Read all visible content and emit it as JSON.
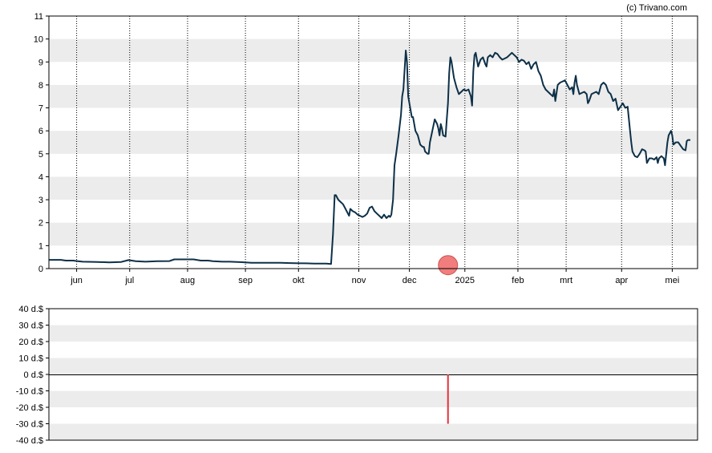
{
  "credit": "(c) Trivano.com",
  "colors": {
    "band": "#ececec",
    "line": "#0d3048",
    "marker": "#f07070",
    "marker_stroke": "#c84040",
    "bar": "#e8303a",
    "grid": "#000000"
  },
  "chart_data": [
    {
      "type": "line",
      "title": "",
      "xlabel": "",
      "ylabel": "",
      "ylim": [
        0,
        11
      ],
      "y_ticks": [
        "0",
        "1",
        "2",
        "3",
        "4",
        "5",
        "6",
        "7",
        "8",
        "9",
        "10",
        "11"
      ],
      "x_ticks": [
        "jun",
        "jul",
        "aug",
        "sep",
        "okt",
        "nov",
        "dec",
        "2025",
        "feb",
        "mrt",
        "apr",
        "mei"
      ],
      "x_tick_positions": [
        11.5,
        33.5,
        57.5,
        81.5,
        103.5,
        128.5,
        149.5,
        172.5,
        194.5,
        214.5,
        237.5,
        258.5
      ],
      "x_range": [
        0,
        269
      ],
      "grid": "vertical dotted at month ticks, horizontal alternating bands",
      "marker": {
        "x": 165.5,
        "y": 0.15
      },
      "series": [
        {
          "points": [
            [
              0,
              0.38
            ],
            [
              5,
              0.38
            ],
            [
              7,
              0.35
            ],
            [
              10,
              0.35
            ],
            [
              12,
              0.32
            ],
            [
              14,
              0.3
            ],
            [
              20,
              0.29
            ],
            [
              25,
              0.27
            ],
            [
              30,
              0.29
            ],
            [
              33,
              0.37
            ],
            [
              36,
              0.32
            ],
            [
              40,
              0.3
            ],
            [
              45,
              0.32
            ],
            [
              50,
              0.33
            ],
            [
              52,
              0.4
            ],
            [
              57,
              0.4
            ],
            [
              60,
              0.4
            ],
            [
              63,
              0.35
            ],
            [
              66,
              0.35
            ],
            [
              68,
              0.32
            ],
            [
              72,
              0.3
            ],
            [
              75,
              0.3
            ],
            [
              80,
              0.28
            ],
            [
              84,
              0.25
            ],
            [
              88,
              0.25
            ],
            [
              92,
              0.25
            ],
            [
              96,
              0.25
            ],
            [
              100,
              0.24
            ],
            [
              104,
              0.23
            ],
            [
              106,
              0.23
            ],
            [
              110,
              0.22
            ],
            [
              115,
              0.22
            ],
            [
              117,
              0.2
            ],
            [
              117.8,
              1.5
            ],
            [
              118.5,
              3.2
            ],
            [
              119,
              3.2
            ],
            [
              120,
              3.0
            ],
            [
              121,
              2.9
            ],
            [
              122,
              2.8
            ],
            [
              123,
              2.6
            ],
            [
              124,
              2.4
            ],
            [
              124.5,
              2.3
            ],
            [
              125,
              2.6
            ],
            [
              126,
              2.5
            ],
            [
              127,
              2.45
            ],
            [
              128,
              2.35
            ],
            [
              129,
              2.3
            ],
            [
              130,
              2.25
            ],
            [
              131,
              2.3
            ],
            [
              132,
              2.4
            ],
            [
              133,
              2.65
            ],
            [
              134,
              2.7
            ],
            [
              135,
              2.5
            ],
            [
              136,
              2.4
            ],
            [
              137,
              2.3
            ],
            [
              138,
              2.2
            ],
            [
              139,
              2.35
            ],
            [
              140,
              2.2
            ],
            [
              141,
              2.3
            ],
            [
              141.5,
              2.25
            ],
            [
              142,
              2.35
            ],
            [
              142.7,
              3.0
            ],
            [
              143.3,
              4.5
            ],
            [
              144,
              5.0
            ],
            [
              145,
              5.8
            ],
            [
              146,
              6.7
            ],
            [
              146.5,
              7.5
            ],
            [
              147,
              7.8
            ],
            [
              148,
              9.5
            ],
            [
              148.5,
              9.0
            ],
            [
              149,
              7.5
            ],
            [
              149.5,
              7.2
            ],
            [
              150,
              6.9
            ],
            [
              150.5,
              6.6
            ],
            [
              151,
              6.6
            ],
            [
              152,
              6.0
            ],
            [
              153,
              5.8
            ],
            [
              153.5,
              5.6
            ],
            [
              154,
              5.4
            ],
            [
              155,
              5.3
            ],
            [
              155.5,
              5.3
            ],
            [
              156,
              5.1
            ],
            [
              157,
              5.0
            ],
            [
              157.5,
              5.0
            ],
            [
              158,
              5.5
            ],
            [
              159,
              6.0
            ],
            [
              160,
              6.5
            ],
            [
              161,
              6.3
            ],
            [
              161.5,
              6.1
            ],
            [
              162,
              5.8
            ],
            [
              162.5,
              6.3
            ],
            [
              163,
              6.1
            ],
            [
              163.5,
              5.8
            ],
            [
              164.5,
              5.75
            ],
            [
              165,
              6.5
            ],
            [
              165.5,
              7.2
            ],
            [
              166,
              8.5
            ],
            [
              166.5,
              9.2
            ],
            [
              167,
              9.0
            ],
            [
              168,
              8.3
            ],
            [
              169,
              7.9
            ],
            [
              170,
              7.6
            ],
            [
              171,
              7.7
            ],
            [
              172,
              7.8
            ],
            [
              173,
              7.75
            ],
            [
              174,
              7.8
            ],
            [
              175,
              7.5
            ],
            [
              175.5,
              7.1
            ],
            [
              176,
              8.6
            ],
            [
              176.5,
              9.3
            ],
            [
              177,
              9.4
            ],
            [
              178,
              8.8
            ],
            [
              179,
              9.1
            ],
            [
              180,
              9.2
            ],
            [
              181,
              8.9
            ],
            [
              181.5,
              8.8
            ],
            [
              182,
              9.2
            ],
            [
              183,
              9.3
            ],
            [
              184,
              9.2
            ],
            [
              185,
              9.4
            ],
            [
              186,
              9.35
            ],
            [
              187,
              9.2
            ],
            [
              188,
              9.1
            ],
            [
              189,
              9.15
            ],
            [
              190,
              9.2
            ],
            [
              191,
              9.3
            ],
            [
              192,
              9.4
            ],
            [
              193,
              9.3
            ],
            [
              194,
              9.2
            ],
            [
              195,
              9.0
            ],
            [
              196,
              9.1
            ],
            [
              197,
              9.05
            ],
            [
              198,
              8.9
            ],
            [
              199,
              9.0
            ],
            [
              200,
              8.7
            ],
            [
              201,
              8.9
            ],
            [
              202,
              9.0
            ],
            [
              203,
              8.6
            ],
            [
              204,
              8.4
            ],
            [
              205,
              8.0
            ],
            [
              206,
              7.8
            ],
            [
              207,
              7.7
            ],
            [
              208,
              7.6
            ],
            [
              209,
              7.5
            ],
            [
              209.5,
              7.8
            ],
            [
              210,
              7.3
            ],
            [
              211,
              8.0
            ],
            [
              212,
              8.1
            ],
            [
              213,
              8.15
            ],
            [
              214,
              8.2
            ],
            [
              215,
              8.0
            ],
            [
              216,
              7.8
            ],
            [
              217,
              7.9
            ],
            [
              217.5,
              7.6
            ],
            [
              218,
              8.1
            ],
            [
              218.5,
              8.4
            ],
            [
              219,
              8.0
            ],
            [
              220,
              7.6
            ],
            [
              221,
              7.65
            ],
            [
              222,
              7.7
            ],
            [
              223,
              7.6
            ],
            [
              223.5,
              7.2
            ],
            [
              224,
              7.3
            ],
            [
              225,
              7.6
            ],
            [
              226,
              7.65
            ],
            [
              227,
              7.7
            ],
            [
              228,
              7.6
            ],
            [
              229,
              8.0
            ],
            [
              230,
              8.1
            ],
            [
              231,
              8.0
            ],
            [
              232,
              7.7
            ],
            [
              233,
              7.6
            ],
            [
              234,
              7.3
            ],
            [
              235,
              7.4
            ],
            [
              236,
              6.9
            ],
            [
              237,
              7.05
            ],
            [
              238,
              7.2
            ],
            [
              239,
              7.0
            ],
            [
              240,
              7.05
            ],
            [
              241,
              6.0
            ],
            [
              241.5,
              5.5
            ],
            [
              242,
              5.1
            ],
            [
              243,
              4.9
            ],
            [
              244,
              4.85
            ],
            [
              245,
              5.0
            ],
            [
              246,
              5.2
            ],
            [
              247,
              5.15
            ],
            [
              247.5,
              5.1
            ],
            [
              248,
              4.6
            ],
            [
              249,
              4.8
            ],
            [
              250,
              4.8
            ],
            [
              251,
              4.75
            ],
            [
              252,
              4.85
            ],
            [
              252.5,
              4.6
            ],
            [
              253,
              4.8
            ],
            [
              254,
              4.9
            ],
            [
              255,
              4.8
            ],
            [
              255.5,
              4.5
            ],
            [
              256,
              5.0
            ],
            [
              256.5,
              5.5
            ],
            [
              257,
              5.8
            ],
            [
              258,
              6.0
            ],
            [
              258.5,
              5.8
            ],
            [
              259,
              5.4
            ],
            [
              260,
              5.5
            ],
            [
              261,
              5.5
            ],
            [
              262,
              5.35
            ],
            [
              263,
              5.2
            ],
            [
              264,
              5.15
            ],
            [
              264.5,
              5.55
            ],
            [
              265,
              5.6
            ],
            [
              266,
              5.6
            ]
          ]
        }
      ]
    },
    {
      "type": "bar",
      "title": "",
      "xlabel": "",
      "ylabel": "",
      "ylim": [
        -40,
        40
      ],
      "y_ticks": [
        "40 d.$",
        "30 d.$",
        "20 d.$",
        "10 d.$",
        "0 d.$",
        "-10 d.$",
        "-20 d.$",
        "-30 d.$",
        "-40 d.$"
      ],
      "x_range": [
        0,
        269
      ],
      "grid": "horizontal alternating bands",
      "series": [
        {
          "points": [
            [
              165.5,
              -30
            ]
          ]
        }
      ]
    }
  ]
}
